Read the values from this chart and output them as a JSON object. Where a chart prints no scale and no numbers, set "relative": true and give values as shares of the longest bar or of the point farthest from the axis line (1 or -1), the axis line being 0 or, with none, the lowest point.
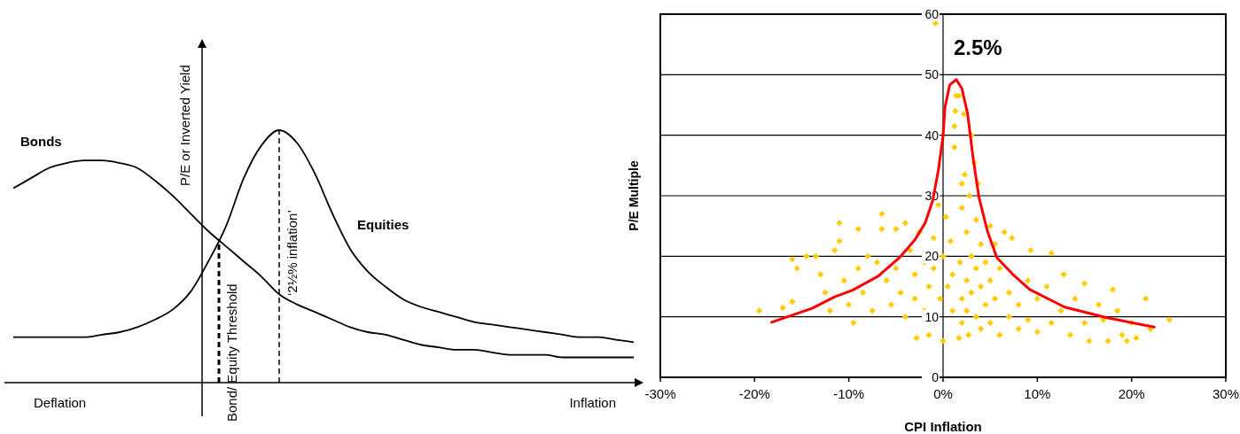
{
  "chart_data": [
    {
      "type": "line",
      "relative": true,
      "ylabel": "P/E or Inverted Yield",
      "marker": "none",
      "line_style": "solid",
      "categories": [
        null,
        null,
        null,
        null,
        null,
        null,
        null,
        null,
        null,
        null,
        null,
        null,
        null,
        null,
        null,
        null,
        null,
        null,
        null,
        null,
        null,
        null,
        null,
        null,
        null,
        null,
        null,
        null,
        null,
        null,
        null,
        null,
        null,
        null,
        null,
        null
      ],
      "series": [
        {
          "name": "Bonds",
          "color": "#000000",
          "values": [
            0.77,
            0.81,
            0.85,
            0.87,
            0.88,
            0.88,
            0.87,
            0.85,
            0.8,
            0.74,
            0.67,
            0.6,
            0.54,
            0.48,
            0.42,
            0.35,
            0.31,
            0.28,
            0.25,
            0.22,
            0.2,
            0.19,
            0.17,
            0.15,
            0.14,
            0.13,
            0.13,
            0.12,
            0.11,
            0.11,
            0.11,
            0.1,
            0.1,
            0.1,
            0.1,
            0.1
          ]
        },
        {
          "name": "Equities",
          "color": "#000000",
          "values": [
            0.18,
            0.18,
            0.18,
            0.18,
            0.18,
            0.19,
            0.2,
            0.22,
            0.25,
            0.29,
            0.36,
            0.48,
            0.62,
            0.81,
            0.94,
            1.0,
            0.95,
            0.83,
            0.67,
            0.53,
            0.44,
            0.38,
            0.33,
            0.3,
            0.28,
            0.26,
            0.24,
            0.23,
            0.22,
            0.21,
            0.2,
            0.19,
            0.18,
            0.18,
            0.17,
            0.16
          ]
        }
      ],
      "annotations": [
        "Deflation",
        "Inflation",
        "Bond/ Equity Threshold",
        "‘2½% inflation’"
      ]
    },
    {
      "type": "scatter",
      "xlabel": "CPI Inflation",
      "ylabel": "P/E Multiple",
      "grid": "y",
      "marker": "diamond",
      "xlim": [
        -30,
        30
      ],
      "xticks": [
        {
          "value": -30,
          "label": "-30%"
        },
        {
          "value": -20,
          "label": "-20%"
        },
        {
          "value": -10,
          "label": "-10%"
        },
        {
          "value": 0,
          "label": "0%"
        },
        {
          "value": 10,
          "label": "10%"
        },
        {
          "value": 20,
          "label": "20%"
        },
        {
          "value": 30,
          "label": "30%"
        }
      ],
      "ylim": [
        0,
        60
      ],
      "yticks": [
        0,
        10,
        20,
        30,
        40,
        50,
        60
      ],
      "annotations": [
        "2.5%"
      ],
      "series": [
        {
          "type": "scatter",
          "color": "#ffcc00",
          "x": [
            -19.5,
            -17,
            -16,
            -16,
            -15.5,
            -14.5,
            -13.5,
            -13,
            -12.5,
            -12,
            -11.5,
            -11,
            -11,
            -10.5,
            -10,
            -9.5,
            -9,
            -9,
            -8.5,
            -8,
            -7.5,
            -7,
            -6.5,
            -6.5,
            -6,
            -5.5,
            -5,
            -5,
            -4.5,
            -4,
            -4,
            -3.5,
            -3,
            -3,
            -2.8,
            -2.5,
            -2,
            -2,
            -1.5,
            -1.5,
            -1,
            -1,
            -0.8,
            -0.5,
            -0.3,
            0,
            0,
            0.3,
            0.5,
            0.8,
            1,
            1,
            1.2,
            1.2,
            1.3,
            1.4,
            1.7,
            1.7,
            1.8,
            2,
            2,
            2,
            2,
            2.2,
            2.3,
            2.5,
            2.5,
            2.5,
            2.7,
            2.8,
            3,
            3,
            3,
            3.3,
            3.5,
            3.5,
            3.5,
            3.7,
            4,
            4,
            4,
            4.5,
            4.5,
            5,
            5,
            5,
            5.5,
            5.5,
            6,
            6,
            6.5,
            7,
            7,
            7.3,
            8,
            8,
            9,
            9,
            9.3,
            10,
            10,
            11,
            11.5,
            11.5,
            12.5,
            12.8,
            13.5,
            14,
            15,
            15,
            15.5,
            16.5,
            17,
            17.5,
            18,
            18.5,
            19,
            19.5,
            20,
            20.5,
            21.5,
            22,
            24
          ],
          "values": [
            11,
            11.5,
            12.5,
            19.5,
            18,
            20,
            20,
            17,
            14,
            11,
            21,
            25.5,
            22.5,
            16,
            12,
            9,
            24.5,
            18,
            14,
            20,
            11,
            19,
            27,
            24.5,
            16,
            12,
            24.5,
            18,
            14,
            25.5,
            10,
            21,
            17,
            13,
            6.5,
            24,
            19,
            11,
            7,
            15,
            23,
            18,
            58.5,
            28.5,
            13,
            6,
            20,
            26.5,
            15,
            22.5,
            11,
            17,
            38,
            41.5,
            44,
            46.5,
            46.5,
            6.5,
            19,
            28,
            32,
            13,
            9,
            43.5,
            33.5,
            24,
            16,
            11,
            7,
            30,
            40,
            20,
            14,
            35.5,
            26,
            18,
            10,
            32,
            22,
            15,
            8,
            19,
            12,
            25,
            16,
            9,
            22,
            13,
            18,
            7,
            24,
            14,
            10,
            23,
            12,
            8,
            16,
            9.5,
            21,
            13,
            7.5,
            15,
            20.5,
            9,
            11,
            17,
            7,
            13,
            15.5,
            9,
            6,
            12,
            9.5,
            6,
            14.5,
            11,
            7,
            6,
            9,
            6.5,
            13,
            8,
            9.5
          ]
        },
        {
          "type": "line",
          "color": "#ff0000",
          "marker": "none",
          "x": [
            -18.2,
            -13.9,
            -11.5,
            -9.6,
            -6.9,
            -4.6,
            -3.0,
            -1.9,
            -1.1,
            -0.5,
            0,
            0.2,
            0.7,
            1.4,
            2.0,
            2.6,
            3.2,
            3.8,
            4.7,
            5.7,
            7.4,
            9.2,
            12.9,
            17.5,
            22.4
          ],
          "values": [
            9.1,
            11.4,
            13.3,
            14.4,
            16.7,
            19.8,
            22.7,
            25.5,
            29.2,
            34.2,
            39.9,
            44.6,
            48.3,
            49.2,
            47.7,
            43.6,
            36.1,
            29.8,
            24.2,
            19.8,
            17.0,
            14.5,
            11.6,
            9.8,
            8.3
          ]
        }
      ]
    }
  ]
}
